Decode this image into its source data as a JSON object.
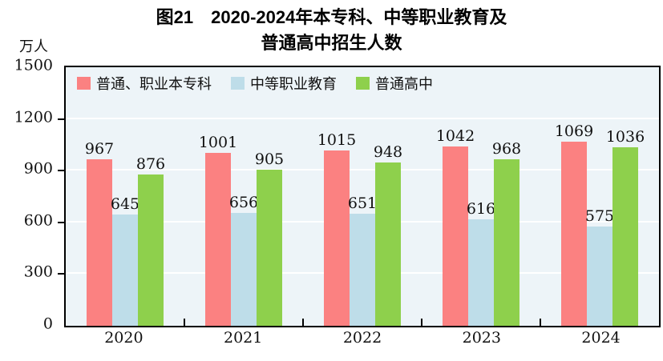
{
  "title": {
    "line1": "图21　2020-2024年本专科、中等职业教育及",
    "line2": "普通高中招生人数"
  },
  "y_axis": {
    "unit": "万人",
    "ticks": [
      1500,
      1200,
      900,
      600,
      300,
      0
    ]
  },
  "x_axis": {
    "categories": [
      "2020",
      "2021",
      "2022",
      "2023",
      "2024"
    ]
  },
  "legend": {
    "items": [
      {
        "label": "普通、职业本专科",
        "color": "#fb8181"
      },
      {
        "label": "中等职业教育",
        "color": "#bedde9"
      },
      {
        "label": "普通高中",
        "color": "#8ed04c"
      }
    ]
  },
  "colors": {
    "plot_background": "#edf4f8",
    "gridline": "#ffffff",
    "axis": "#000000",
    "series_red": "#fb8181",
    "series_blue": "#bedde9",
    "series_green": "#8ed04c"
  },
  "chart_data": {
    "type": "bar",
    "title": "图21 2020-2024年本专科、中等职业教育及普通高中招生人数",
    "unit": "万人",
    "categories": [
      "2020",
      "2021",
      "2022",
      "2023",
      "2024"
    ],
    "series": [
      {
        "name": "普通、职业本专科",
        "color": "#fb8181",
        "values": [
          967,
          1001,
          1015,
          1042,
          1069
        ]
      },
      {
        "name": "中等职业教育",
        "color": "#bedde9",
        "values": [
          645,
          656,
          651,
          616,
          575
        ]
      },
      {
        "name": "普通高中",
        "color": "#8ed04c",
        "values": [
          876,
          905,
          948,
          968,
          1036
        ]
      }
    ],
    "ylim": [
      0,
      1500
    ],
    "ytick_interval": 300,
    "grid": true,
    "data_labels": true,
    "legend_position": "top-left-inside"
  }
}
